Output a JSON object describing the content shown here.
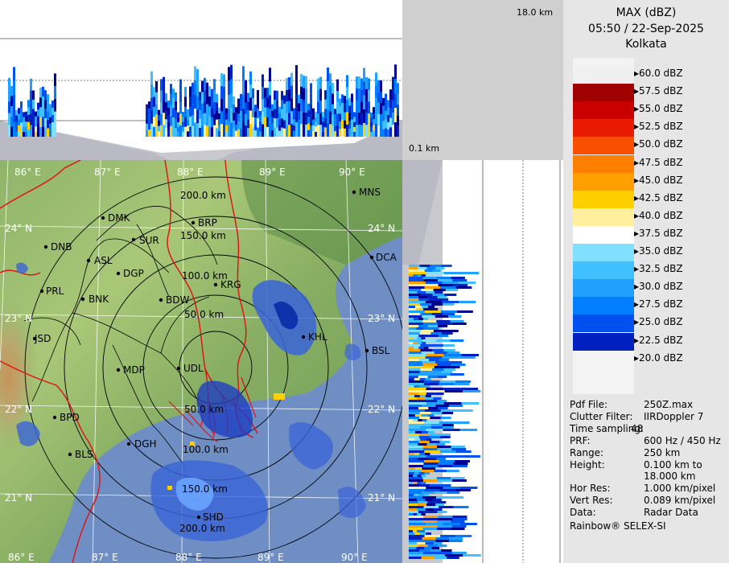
{
  "header": {
    "product": "MAX (dBZ)",
    "datetime": "05:50 / 22-Sep-2025",
    "station": "Kolkata"
  },
  "top_panel": {
    "height_max_label": "18.0 km",
    "height_min_label": "0.1 km"
  },
  "legend": {
    "levels": [
      {
        "label": "60.0 dBZ",
        "color": "#f0f0f0"
      },
      {
        "label": "57.5 dBZ",
        "color": "#a00000"
      },
      {
        "label": "55.0 dBZ",
        "color": "#c80000"
      },
      {
        "label": "52.5 dBZ",
        "color": "#e81a00"
      },
      {
        "label": "50.0 dBZ",
        "color": "#f85000"
      },
      {
        "label": "47.5 dBZ",
        "color": "#ff8000"
      },
      {
        "label": "45.0 dBZ",
        "color": "#ffa000"
      },
      {
        "label": "42.5 dBZ",
        "color": "#ffd000"
      },
      {
        "label": "40.0 dBZ",
        "color": "#fff0a0"
      },
      {
        "label": "37.5 dBZ",
        "color": "#ffffff"
      },
      {
        "label": "35.0 dBZ",
        "color": "#80e0ff"
      },
      {
        "label": "32.5 dBZ",
        "color": "#40c0ff"
      },
      {
        "label": "30.0 dBZ",
        "color": "#20a0ff"
      },
      {
        "label": "27.5 dBZ",
        "color": "#0080ff"
      },
      {
        "label": "25.0 dBZ",
        "color": "#0050f0"
      },
      {
        "label": "22.5 dBZ",
        "color": "#0020c0"
      },
      {
        "label": "20.0 dBZ",
        "color": "#000090"
      }
    ],
    "below_color": "#eeeeee"
  },
  "info": [
    {
      "key": "Pdf File:",
      "value": "250Z.max"
    },
    {
      "key": "Clutter Filter:",
      "value": "IIRDoppler 7"
    },
    {
      "key": "Time sampling:",
      "value": "48"
    },
    {
      "key": "PRF:",
      "value": "600 Hz / 450 Hz"
    },
    {
      "key": "Range:",
      "value": "250 km"
    },
    {
      "key": "Height:",
      "value": "0.100 km to"
    },
    {
      "key": "",
      "value": "18.000 km"
    },
    {
      "key": "Hor Res:",
      "value": "1.000 km/pixel"
    },
    {
      "key": "Vert Res:",
      "value": "0.089 km/pixel"
    },
    {
      "key": "Data:",
      "value": "Radar Data"
    }
  ],
  "credit": "Rainbow® SELEX-SI",
  "map": {
    "lon_top": [
      "86° E",
      "87° E",
      "88° E",
      "89° E",
      "90° E"
    ],
    "lon_bottom": [
      "86° E",
      "87° E",
      "88° E",
      "89° E",
      "90° E"
    ],
    "lat_left": [
      "24° N",
      "23° N",
      "22° N",
      "21° N"
    ],
    "lat_right": [
      "24° N",
      "23° N",
      "22° N",
      "21° N"
    ],
    "range_rings": [
      "50.0 km",
      "100.0 km",
      "150.0 km",
      "200.0 km"
    ],
    "range_rings_south": [
      "50.0 km",
      "100.0 km",
      "150.0 km",
      "200.0 km"
    ],
    "stations": [
      "MNS",
      "DMK",
      "BRP",
      "DNB",
      "SUR",
      "ASL",
      "DGP",
      "DCA",
      "PRL",
      "BNK",
      "BDW",
      "KRG",
      "JSD",
      "KHL",
      "BSL",
      "MDP",
      "UDL",
      "BPD",
      "DGH",
      "BLS",
      "SHD"
    ]
  }
}
